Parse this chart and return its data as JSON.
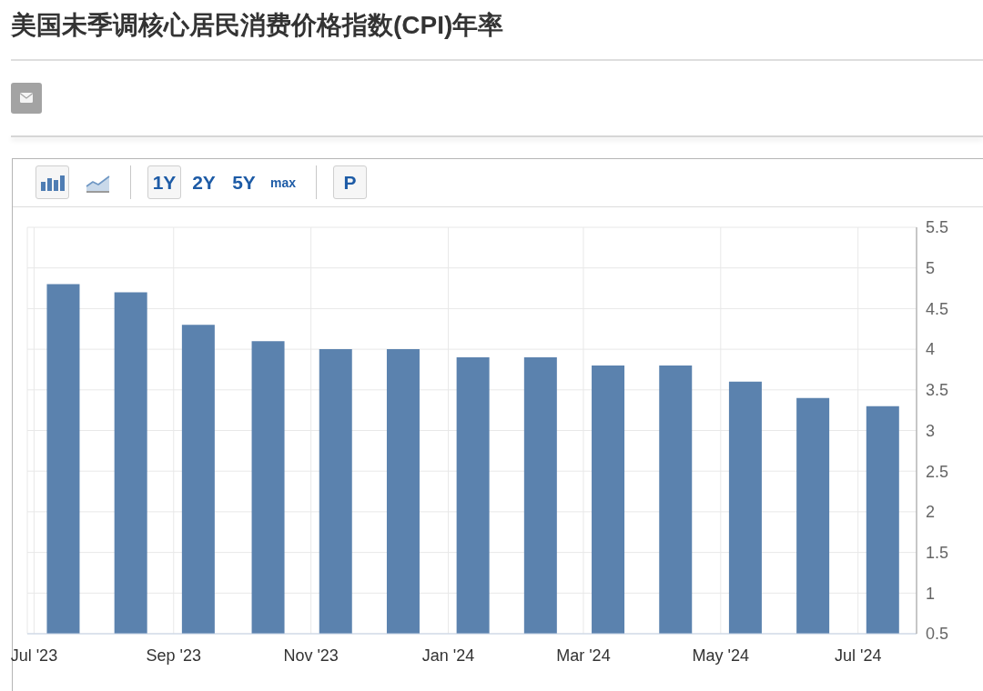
{
  "chart_data": {
    "type": "bar",
    "title": "美国未季调核心居民消费价格指数(CPI)年率",
    "x": [
      "2023-07-14",
      "2023-08-13",
      "2023-09-12",
      "2023-10-13",
      "2023-11-12",
      "2023-12-12",
      "2024-01-12",
      "2024-02-11",
      "2024-03-12",
      "2024-04-11",
      "2024-05-12",
      "2024-06-11",
      "2024-07-12"
    ],
    "values": [
      4.8,
      4.7,
      4.3,
      4.1,
      4.0,
      4.0,
      3.9,
      3.9,
      3.8,
      3.8,
      3.6,
      3.4,
      3.3
    ],
    "color": "#5b82ae",
    "xlim": [
      "2023-06-28",
      "2024-07-27"
    ],
    "xticks": [
      {
        "value": "2023-07-01",
        "label": "Jul '23"
      },
      {
        "value": "2023-09-01",
        "label": "Sep '23"
      },
      {
        "value": "2023-11-01",
        "label": "Nov '23"
      },
      {
        "value": "2024-01-01",
        "label": "Jan '24"
      },
      {
        "value": "2024-03-01",
        "label": "Mar '24"
      },
      {
        "value": "2024-05-01",
        "label": "May '24"
      },
      {
        "value": "2024-07-01",
        "label": "Jul '24"
      }
    ],
    "ylim": [
      0.5,
      5.5
    ],
    "yticks": [
      0.5,
      1,
      1.5,
      2,
      2.5,
      3,
      3.5,
      4,
      4.5,
      5,
      5.5
    ],
    "grid": true,
    "annotations": [
      "1Y",
      "2Y",
      "5Y",
      "max",
      "P"
    ]
  }
}
